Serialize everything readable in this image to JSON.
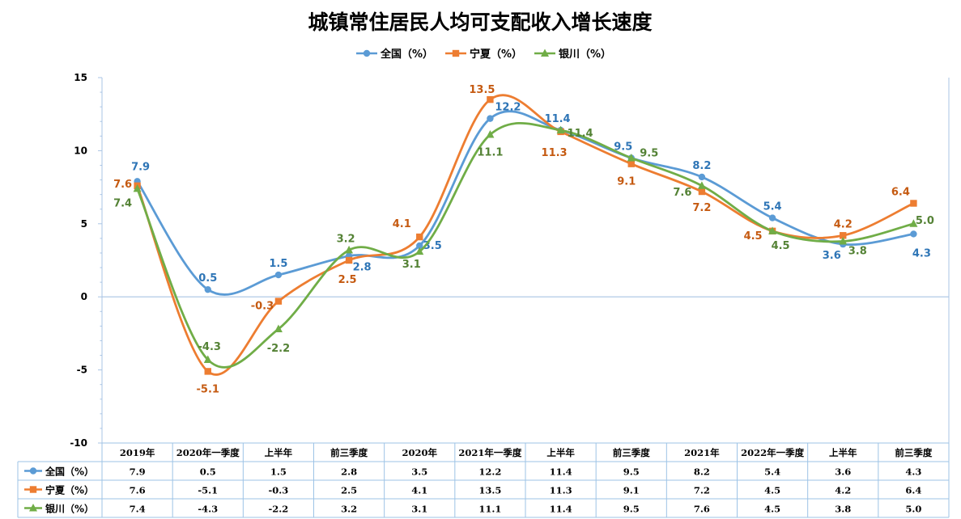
{
  "chart_data": {
    "type": "line",
    "title": "城镇常住居民人均可支配收入增长速度",
    "categories": [
      "2019年",
      "2020年一季度",
      "上半年",
      "前三季度",
      "2020年",
      "2021年一季度",
      "上半年",
      "前三季度",
      "2021年",
      "2022年一季度",
      "上半年",
      "前三季度"
    ],
    "ylim": [
      -10,
      15
    ],
    "yticks": [
      -10,
      -5,
      0,
      5,
      10,
      15
    ],
    "smooth": true,
    "legend_position": "top",
    "data_table": true,
    "series": [
      {
        "name": "全国（%）",
        "values": [
          7.9,
          0.5,
          1.5,
          2.8,
          3.5,
          12.2,
          11.4,
          9.5,
          8.2,
          5.4,
          3.6,
          4.3
        ],
        "color": "#5B9BD5",
        "marker": "circle"
      },
      {
        "name": "宁夏（%）",
        "values": [
          7.6,
          -5.1,
          -0.3,
          2.5,
          4.1,
          13.5,
          11.3,
          9.1,
          7.2,
          4.5,
          4.2,
          6.4
        ],
        "color": "#ED7D31",
        "marker": "square"
      },
      {
        "name": "银川（%）",
        "values": [
          7.4,
          -4.3,
          -2.2,
          3.2,
          3.1,
          11.1,
          11.4,
          9.5,
          7.6,
          4.5,
          3.8,
          5.0
        ],
        "color": "#70AD47",
        "marker": "triangle"
      }
    ]
  },
  "colors": {
    "series_label_national": "#2E75B6",
    "series_label_ningxia": "#C55A11",
    "series_label_yinchuan": "#548235",
    "zero_line": "#A9C4E4",
    "axis": "#A9C4E4",
    "table_border": "#9DC3E6"
  }
}
